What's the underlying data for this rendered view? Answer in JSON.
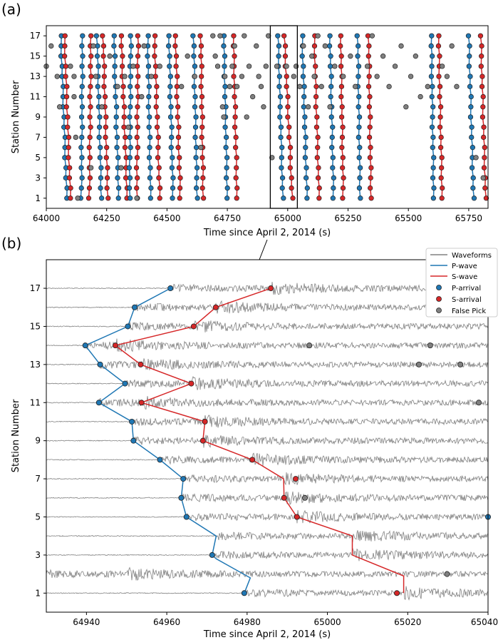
{
  "figure": {
    "panel_labels": [
      "(a)",
      "(b)"
    ]
  },
  "colors": {
    "p_wave": "#1f77b4",
    "s_wave": "#d62728",
    "p_arrival": "#1f77b4",
    "s_arrival": "#d62728",
    "false_pick": "#808080",
    "waveform": "#808080",
    "edge": "#222222"
  },
  "chart_data": [
    {
      "id": "a",
      "type": "scatter",
      "xlabel": "Time since April 2, 2014 (s)",
      "ylabel": "Station Number",
      "xlim": [
        64000,
        65830
      ],
      "ylim": [
        0,
        18
      ],
      "xticks": [
        64000,
        64250,
        64500,
        64750,
        65000,
        65250,
        65500,
        65750
      ],
      "yticks": [
        1,
        3,
        5,
        7,
        9,
        11,
        13,
        15,
        17
      ],
      "highlight_window": [
        64928,
        65040
      ],
      "events": [
        {
          "p_top": 64060,
          "p_bot": 64085,
          "s_top": 64075,
          "s_bot": 64100
        },
        {
          "p_top": 64150,
          "p_bot": 64145,
          "s_top": 64185,
          "s_bot": 64178
        },
        {
          "p_top": 64210,
          "p_bot": 64228,
          "s_top": 64235,
          "s_bot": 64255
        },
        {
          "p_top": 64280,
          "p_bot": 64300,
          "s_top": 64310,
          "s_bot": 64335
        },
        {
          "p_top": 64350,
          "p_bot": 64345,
          "s_top": 64380,
          "s_bot": 64375
        },
        {
          "p_top": 64420,
          "p_bot": 64432,
          "s_top": 64448,
          "s_bot": 64470
        },
        {
          "p_top": 64508,
          "p_bot": 64525,
          "s_top": 64535,
          "s_bot": 64555
        },
        {
          "p_top": 64610,
          "p_bot": 64625,
          "s_top": 64640,
          "s_bot": 64650
        },
        {
          "p_top": 64735,
          "p_bot": 64750,
          "s_top": 64775,
          "s_bot": 64790
        },
        {
          "p_top": 64960,
          "p_bot": 64980,
          "s_top": 64986,
          "s_bot": 65019
        },
        {
          "p_top": 65060,
          "p_bot": 65080,
          "s_top": 65110,
          "s_bot": 65130
        },
        {
          "p_top": 65175,
          "p_bot": 65190,
          "s_top": 65220,
          "s_bot": 65230
        },
        {
          "p_top": 65290,
          "p_bot": 65300,
          "s_top": 65335,
          "s_bot": 65345
        },
        {
          "p_top": 65595,
          "p_bot": 65605,
          "s_top": 65625,
          "s_bot": 65640
        },
        {
          "p_top": 65750,
          "p_bot": 65770,
          "s_top": 65800,
          "s_bot": 65820
        }
      ],
      "false_picks": [
        [
          64000,
          14
        ],
        [
          64020,
          16
        ],
        [
          64045,
          13
        ],
        [
          64055,
          10
        ],
        [
          64100,
          14
        ],
        [
          64115,
          13
        ],
        [
          64115,
          11
        ],
        [
          64122,
          7
        ],
        [
          64130,
          1
        ],
        [
          64185,
          4
        ],
        [
          64195,
          16
        ],
        [
          64205,
          13
        ],
        [
          64230,
          10
        ],
        [
          64263,
          15
        ],
        [
          64295,
          12
        ],
        [
          64310,
          4
        ],
        [
          64325,
          13
        ],
        [
          64340,
          8
        ],
        [
          64360,
          14
        ],
        [
          64375,
          1
        ],
        [
          64395,
          11
        ],
        [
          64405,
          16
        ],
        [
          64435,
          13
        ],
        [
          64470,
          14
        ],
        [
          64560,
          12
        ],
        [
          64585,
          15
        ],
        [
          64615,
          13
        ],
        [
          64640,
          6
        ],
        [
          64690,
          17
        ],
        [
          64700,
          15
        ],
        [
          64710,
          14
        ],
        [
          64720,
          17
        ],
        [
          64730,
          10
        ],
        [
          64735,
          9
        ],
        [
          64740,
          13
        ],
        [
          64760,
          12
        ],
        [
          64770,
          14
        ],
        [
          64780,
          16
        ],
        [
          64790,
          12
        ],
        [
          64810,
          13
        ],
        [
          64820,
          17
        ],
        [
          64830,
          9
        ],
        [
          64840,
          14
        ],
        [
          64855,
          11
        ],
        [
          64870,
          16
        ],
        [
          64880,
          13
        ],
        [
          64890,
          12
        ],
        [
          64900,
          10
        ],
        [
          64910,
          14
        ],
        [
          64920,
          17
        ],
        [
          64935,
          5
        ],
        [
          64955,
          14
        ],
        [
          64995,
          14
        ],
        [
          65025,
          13
        ],
        [
          65035,
          14
        ],
        [
          65050,
          12
        ],
        [
          65065,
          16
        ],
        [
          65085,
          10
        ],
        [
          65100,
          15
        ],
        [
          65110,
          13
        ],
        [
          65125,
          17
        ],
        [
          65140,
          12
        ],
        [
          65155,
          16
        ],
        [
          65175,
          10
        ],
        [
          65195,
          14
        ],
        [
          65230,
          13
        ],
        [
          65260,
          15
        ],
        [
          65280,
          12
        ],
        [
          65330,
          14
        ],
        [
          65350,
          17
        ],
        [
          65370,
          13
        ],
        [
          65395,
          15
        ],
        [
          65420,
          12
        ],
        [
          65445,
          14
        ],
        [
          65470,
          16
        ],
        [
          65490,
          10
        ],
        [
          65510,
          13
        ],
        [
          65530,
          15
        ],
        [
          65550,
          11
        ],
        [
          65580,
          12
        ],
        [
          65640,
          14
        ],
        [
          65660,
          13
        ],
        [
          65680,
          16
        ],
        [
          65700,
          12
        ],
        [
          65780,
          5
        ],
        [
          65810,
          3
        ]
      ]
    },
    {
      "id": "b",
      "type": "line",
      "xlabel": "Time since April 2, 2014 (s)",
      "ylabel": "Station Number",
      "xlim": [
        64930,
        65040
      ],
      "ylim": [
        0,
        18.5
      ],
      "xticks": [
        64940,
        64960,
        64980,
        65000,
        65020,
        65040
      ],
      "yticks": [
        1,
        3,
        5,
        7,
        9,
        11,
        13,
        15,
        17
      ],
      "legend": [
        "Waveforms",
        "P-wave",
        "S-wave",
        "P-arrival",
        "S-arrival",
        "False Pick"
      ],
      "p_wave": [
        [
          64979.3,
          1
        ],
        [
          64980.8,
          1.8
        ],
        [
          64972.3,
          2.8
        ],
        [
          64971.3,
          3
        ],
        [
          64972.3,
          4
        ],
        [
          64964.9,
          5
        ],
        [
          64963.6,
          6
        ],
        [
          64964.1,
          7
        ],
        [
          64958.3,
          8
        ],
        [
          64951.7,
          9
        ],
        [
          64951.3,
          10
        ],
        [
          64943.1,
          11
        ],
        [
          64949.6,
          12
        ],
        [
          64943.4,
          13
        ],
        [
          64939.7,
          14
        ],
        [
          64950.3,
          15
        ],
        [
          64952.0,
          16
        ],
        [
          64960.9,
          17
        ]
      ],
      "s_wave": [
        [
          65019,
          1
        ],
        [
          65019,
          1.9
        ],
        [
          65006.2,
          3
        ],
        [
          65006.2,
          4
        ],
        [
          64992.4,
          5
        ],
        [
          64989.2,
          6
        ],
        [
          64989.1,
          7
        ],
        [
          64981.3,
          8
        ],
        [
          64969.0,
          9
        ],
        [
          64969.5,
          10
        ],
        [
          64953.7,
          11
        ],
        [
          64966.1,
          12
        ],
        [
          64953.5,
          13
        ],
        [
          64947.2,
          14
        ],
        [
          64966.7,
          15
        ],
        [
          64972.2,
          16
        ],
        [
          64985.9,
          17
        ]
      ],
      "p_arrivals": [
        [
          64979.3,
          1
        ],
        [
          64971.3,
          3
        ],
        [
          64964.9,
          5
        ],
        [
          64963.6,
          6
        ],
        [
          64964.1,
          7
        ],
        [
          64958.3,
          8
        ],
        [
          64951.7,
          9
        ],
        [
          64951.3,
          10
        ],
        [
          64943.1,
          11
        ],
        [
          64949.6,
          12
        ],
        [
          64943.4,
          13
        ],
        [
          64939.7,
          14
        ],
        [
          64950.3,
          15
        ],
        [
          64952.0,
          16
        ],
        [
          64960.9,
          17
        ],
        [
          65040,
          5
        ]
      ],
      "s_arrivals": [
        [
          65017.3,
          1
        ],
        [
          64992.4,
          5
        ],
        [
          64989.2,
          6
        ],
        [
          64992.1,
          7
        ],
        [
          64981.3,
          8
        ],
        [
          64969.0,
          9
        ],
        [
          64969.5,
          10
        ],
        [
          64953.7,
          11
        ],
        [
          64966.1,
          12
        ],
        [
          64953.5,
          13
        ],
        [
          64947.2,
          14
        ],
        [
          64966.7,
          15
        ],
        [
          64972.2,
          16
        ],
        [
          64985.9,
          17
        ]
      ],
      "false_picks": [
        [
          65029.8,
          2
        ],
        [
          64994.4,
          6
        ],
        [
          64995.5,
          14
        ],
        [
          65025.6,
          14
        ],
        [
          65022.8,
          13
        ],
        [
          65033.1,
          13
        ],
        [
          65037.7,
          11
        ]
      ]
    }
  ]
}
